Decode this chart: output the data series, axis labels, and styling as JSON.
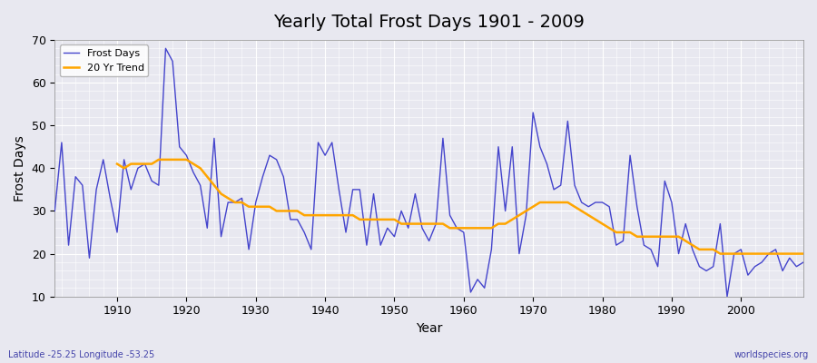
{
  "title": "Yearly Total Frost Days 1901 - 2009",
  "xlabel": "Year",
  "ylabel": "Frost Days",
  "footnote_left": "Latitude -25.25 Longitude -53.25",
  "footnote_right": "worldspecies.org",
  "ylim": [
    10,
    70
  ],
  "xlim": [
    1901,
    2009
  ],
  "yticks": [
    10,
    20,
    30,
    40,
    50,
    60,
    70
  ],
  "frost_line_color": "#4444cc",
  "trend_line_color": "#FFA500",
  "bg_color": "#e8e8f0",
  "grid_color": "#ffffff",
  "years": [
    1901,
    1902,
    1903,
    1904,
    1905,
    1906,
    1907,
    1908,
    1909,
    1910,
    1911,
    1912,
    1913,
    1914,
    1915,
    1916,
    1917,
    1918,
    1919,
    1920,
    1921,
    1922,
    1923,
    1924,
    1925,
    1926,
    1927,
    1928,
    1929,
    1930,
    1931,
    1932,
    1933,
    1934,
    1935,
    1936,
    1937,
    1938,
    1939,
    1940,
    1941,
    1942,
    1943,
    1944,
    1945,
    1946,
    1947,
    1948,
    1949,
    1950,
    1951,
    1952,
    1953,
    1954,
    1955,
    1956,
    1957,
    1958,
    1959,
    1960,
    1961,
    1962,
    1963,
    1964,
    1965,
    1966,
    1967,
    1968,
    1969,
    1970,
    1971,
    1972,
    1973,
    1974,
    1975,
    1976,
    1977,
    1978,
    1979,
    1980,
    1981,
    1982,
    1983,
    1984,
    1985,
    1986,
    1987,
    1988,
    1989,
    1990,
    1991,
    1992,
    1993,
    1994,
    1995,
    1996,
    1997,
    1998,
    1999,
    2000,
    2001,
    2002,
    2003,
    2004,
    2005,
    2006,
    2007,
    2008,
    2009
  ],
  "frost_days": [
    30,
    46,
    22,
    38,
    36,
    19,
    35,
    42,
    33,
    25,
    42,
    35,
    40,
    41,
    37,
    36,
    68,
    65,
    45,
    43,
    39,
    36,
    26,
    47,
    24,
    32,
    32,
    33,
    21,
    32,
    38,
    43,
    42,
    38,
    28,
    28,
    25,
    21,
    46,
    43,
    46,
    35,
    25,
    35,
    35,
    22,
    34,
    22,
    26,
    24,
    30,
    26,
    34,
    26,
    23,
    27,
    47,
    29,
    26,
    25,
    11,
    14,
    12,
    21,
    45,
    30,
    45,
    20,
    29,
    53,
    45,
    41,
    35,
    36,
    51,
    36,
    32,
    31,
    32,
    32,
    31,
    22,
    23,
    43,
    31,
    22,
    21,
    17,
    37,
    32,
    20,
    27,
    21,
    17,
    16,
    17,
    27,
    10,
    20,
    21,
    15,
    17,
    18,
    20,
    21,
    16,
    19,
    17,
    18
  ],
  "trend_start_year": 1910,
  "trend_vals": [
    41,
    40,
    41,
    41,
    41,
    41,
    42,
    42,
    42,
    42,
    42,
    41,
    40,
    38,
    36,
    34,
    33,
    32,
    32,
    31,
    31,
    31,
    31,
    30,
    30,
    30,
    30,
    29,
    29,
    29,
    29,
    29,
    29,
    29,
    29,
    28,
    28,
    28,
    28,
    28,
    28,
    27,
    27,
    27,
    27,
    27,
    27,
    27,
    26,
    26,
    26,
    26,
    26,
    26,
    26,
    27,
    27,
    28,
    29,
    30,
    31,
    32,
    32,
    32,
    32,
    32,
    31,
    30,
    29,
    28,
    27,
    26,
    25,
    25,
    25,
    24,
    24,
    24,
    24,
    24,
    24,
    24,
    23,
    22,
    21,
    21,
    21,
    20,
    20,
    20,
    20,
    20,
    20,
    20,
    20,
    20,
    20,
    20,
    20,
    20
  ]
}
